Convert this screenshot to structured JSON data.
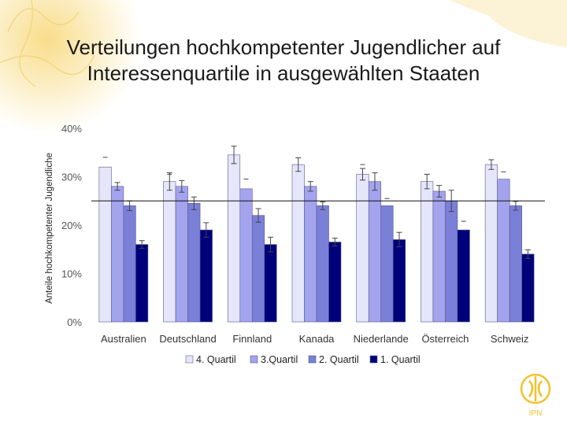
{
  "slide": {
    "title_line1": "Verteilungen hochkompetenter Jugendlicher auf",
    "title_line2": "Interessenquartile in ausgewählten Staaten",
    "logo_text": "IPN"
  },
  "colors": {
    "series": [
      "#e6e6fa",
      "#a3a3ee",
      "#7a7fd8",
      "#00007a"
    ],
    "bar_stroke": "#5a5a8a",
    "error": "#444444",
    "axis_text": "#555555",
    "grid_ref": "#111111",
    "accent": "#f3c12a"
  },
  "chart_data": {
    "type": "bar",
    "ylabel": "Anteile hochkompetenter Jugendliche",
    "ylim": [
      0,
      40
    ],
    "yticks": [
      0,
      10,
      20,
      30,
      40
    ],
    "ytick_labels": [
      "0%",
      "10%",
      "20%",
      "30%",
      "40%"
    ],
    "reference_line": 25,
    "categories": [
      "Australien",
      "Deutschland",
      "Finnland",
      "Kanada",
      "Niederlande",
      "Österreich",
      "Schweiz"
    ],
    "series": [
      {
        "name": "4. Quartil",
        "values": [
          32,
          29,
          34.5,
          32.5,
          30.5,
          29,
          32.5
        ],
        "errors": [
          0,
          1.8,
          1.8,
          1.4,
          1.2,
          1.5,
          1.0
        ],
        "marker_offsets": [
          2,
          1.5,
          0,
          0,
          2,
          0,
          0
        ]
      },
      {
        "name": "3.Quartil",
        "values": [
          28,
          28,
          27.5,
          28,
          29,
          27,
          29.5
        ],
        "errors": [
          0.8,
          1.2,
          0,
          1.0,
          1.8,
          1.2,
          0
        ],
        "marker_offsets": [
          0,
          0,
          2,
          0,
          0,
          0,
          1.5
        ]
      },
      {
        "name": "2. Quartil",
        "values": [
          24,
          24.5,
          22,
          24,
          24,
          25,
          24
        ],
        "errors": [
          1.0,
          1.3,
          1.4,
          0.8,
          0,
          2.2,
          0.9
        ],
        "marker_offsets": [
          0,
          0,
          0,
          0,
          1.5,
          0,
          0
        ]
      },
      {
        "name": "1. Quartil",
        "values": [
          16,
          19,
          16,
          16.5,
          17,
          19,
          14
        ],
        "errors": [
          0.8,
          1.5,
          1.5,
          0.8,
          1.5,
          0,
          0.9
        ],
        "marker_offsets": [
          0,
          0,
          0,
          0,
          0,
          1.8,
          0
        ]
      }
    ]
  }
}
